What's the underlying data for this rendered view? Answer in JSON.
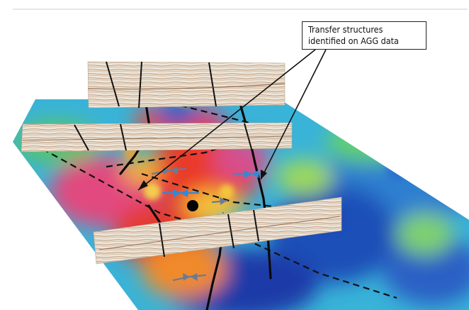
{
  "figure": {
    "callout": {
      "line1": "Transfer structures",
      "line2": "identified on AGG data"
    }
  }
}
